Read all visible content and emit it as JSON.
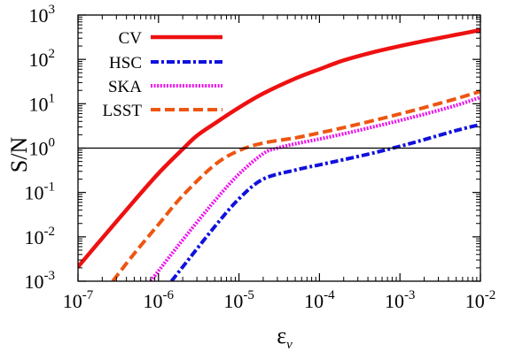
{
  "chart_data": {
    "type": "line",
    "title": "",
    "xlabel": "ε",
    "xlabel_subscript": "ν",
    "ylabel": "S/N",
    "xscale": "log",
    "yscale": "log",
    "xlim": [
      1e-07,
      0.01
    ],
    "ylim": [
      0.001,
      1000
    ],
    "grid": false,
    "legend_position": "top-left",
    "x_ticks": [
      {
        "base": "10",
        "exp": "-7",
        "value": 1e-07
      },
      {
        "base": "10",
        "exp": "-6",
        "value": 1e-06
      },
      {
        "base": "10",
        "exp": "-5",
        "value": 1e-05
      },
      {
        "base": "10",
        "exp": "-4",
        "value": 0.0001
      },
      {
        "base": "10",
        "exp": "-3",
        "value": 0.001
      },
      {
        "base": "10",
        "exp": "-2",
        "value": 0.01
      }
    ],
    "y_ticks": [
      {
        "base": "10",
        "exp": "-3",
        "value": 0.001
      },
      {
        "base": "10",
        "exp": "-2",
        "value": 0.01
      },
      {
        "base": "10",
        "exp": "-1",
        "value": 0.1
      },
      {
        "base": "10",
        "exp": "0",
        "value": 1
      },
      {
        "base": "10",
        "exp": "1",
        "value": 10
      },
      {
        "base": "10",
        "exp": "2",
        "value": 100
      },
      {
        "base": "10",
        "exp": "3",
        "value": 1000
      }
    ],
    "reference_line": {
      "y": 1,
      "color": "#000000"
    },
    "series": [
      {
        "name": "CV",
        "color": "#ee1111",
        "dash": "solid",
        "x": [
          1e-07,
          2e-07,
          5e-07,
          1e-06,
          2e-06,
          3e-06,
          5e-06,
          1e-05,
          2e-05,
          5e-05,
          0.0001,
          0.0002,
          0.0005,
          0.001,
          0.002,
          0.005,
          0.01
        ],
        "y": [
          0.0021,
          0.0093,
          0.065,
          0.27,
          0.95,
          1.9,
          3.6,
          8.2,
          17,
          37,
          60,
          95,
          150,
          200,
          260,
          360,
          460
        ]
      },
      {
        "name": "HSC",
        "color": "#1010dd",
        "dash": "dashdot",
        "x": [
          1.45e-06,
          2e-06,
          5e-06,
          1e-05,
          2e-05,
          5e-05,
          0.0001,
          0.0002,
          0.0005,
          0.001,
          0.002,
          0.005,
          0.01
        ],
        "y": [
          0.001,
          0.0021,
          0.017,
          0.072,
          0.2,
          0.32,
          0.42,
          0.55,
          0.8,
          1.1,
          1.55,
          2.5,
          3.4
        ]
      },
      {
        "name": "SKA",
        "color": "#ee11ee",
        "dash": "dotted",
        "x": [
          8e-07,
          1e-06,
          2e-06,
          5e-06,
          1e-05,
          2e-05,
          3e-05,
          5e-05,
          0.0001,
          0.0002,
          0.0005,
          0.001,
          0.002,
          0.005,
          0.01
        ],
        "y": [
          0.001,
          0.0017,
          0.0085,
          0.065,
          0.26,
          0.75,
          1.0,
          1.25,
          1.6,
          2.1,
          3.1,
          4.2,
          5.8,
          9.2,
          14
        ]
      },
      {
        "name": "LSST",
        "color": "#ee5511",
        "dash": "dashed",
        "x": [
          2.7e-07,
          5e-07,
          1e-06,
          2e-06,
          5e-06,
          1e-05,
          2e-05,
          5e-05,
          0.0001,
          0.0002,
          0.0005,
          0.001,
          0.002,
          0.005,
          0.01
        ],
        "y": [
          0.001,
          0.0042,
          0.019,
          0.085,
          0.42,
          0.88,
          1.3,
          1.7,
          2.2,
          2.9,
          4.3,
          5.9,
          8.2,
          13,
          19
        ]
      }
    ]
  }
}
